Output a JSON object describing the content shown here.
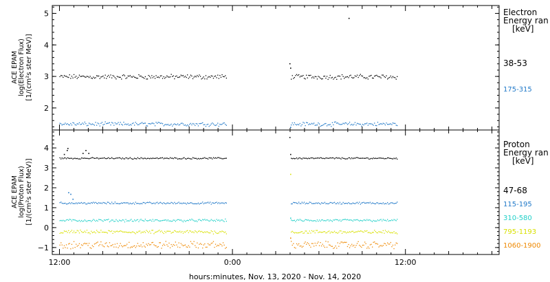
{
  "xaxis": {
    "label": "hours:minutes, Nov. 13, 2020 - Nov. 14, 2020",
    "ticks": [
      {
        "label": "12:00",
        "hour": 12
      },
      {
        "label": "0:00",
        "hour": 24
      },
      {
        "label": "12:00",
        "hour": 36
      }
    ]
  },
  "chart_data": [
    {
      "type": "scatter",
      "name": "electron",
      "ylabel_lines": [
        "ACE EPAM",
        "log(Electron Flux)",
        "[1/(cm²s ster MeV)]"
      ],
      "ylim": [
        1.3,
        5.25
      ],
      "yticks": [
        2,
        3,
        4,
        5
      ],
      "xlim_hours": [
        11.5,
        42.5
      ],
      "legend_title": [
        "Electron",
        "Energy ran",
        "[keV]"
      ],
      "data_gaps_hours": [
        [
          23.6,
          28.0
        ],
        [
          35.4,
          42.5
        ]
      ],
      "series": [
        {
          "name": "38-53",
          "color": "#000000",
          "level": 3.0,
          "spread": 0.06,
          "extra_points": [
            {
              "x": 27.95,
              "y": 3.42
            },
            {
              "x": 28.0,
              "y": 3.28
            },
            {
              "x": 32.05,
              "y": 4.86
            }
          ]
        },
        {
          "name": "175-315",
          "color": "#1f78c8",
          "level": 1.5,
          "spread": 0.05,
          "extra_points": [
            {
              "x": 28.0,
              "y": 1.4
            }
          ]
        }
      ]
    },
    {
      "type": "scatter",
      "name": "proton",
      "ylabel_lines": [
        "ACE EPAM",
        "log(Proton Flux)",
        "[1/(cm²s ster MeV)]"
      ],
      "ylim": [
        -1.35,
        4.9
      ],
      "yticks": [
        -1,
        0,
        1,
        2,
        3,
        4
      ],
      "xlim_hours": [
        11.5,
        42.5
      ],
      "legend_title": [
        "Proton",
        "Energy ran",
        "[keV]"
      ],
      "data_gaps_hours": [
        [
          23.6,
          28.0
        ],
        [
          35.4,
          42.5
        ]
      ],
      "series": [
        {
          "name": "47-68",
          "color": "#000000",
          "level": 3.5,
          "spread": 0.03,
          "extra_points": [
            {
              "x": 12.3,
              "y": 3.7
            },
            {
              "x": 12.5,
              "y": 3.9
            },
            {
              "x": 12.55,
              "y": 4.0
            },
            {
              "x": 13.6,
              "y": 3.75
            },
            {
              "x": 13.8,
              "y": 3.9
            },
            {
              "x": 14.0,
              "y": 3.75
            },
            {
              "x": 27.95,
              "y": 4.55
            },
            {
              "x": 28.0,
              "y": 3.7
            }
          ]
        },
        {
          "name": "115-195",
          "color": "#1f78c8",
          "level": 1.25,
          "spread": 0.04,
          "extra_points": [
            {
              "x": 12.6,
              "y": 1.78
            },
            {
              "x": 12.75,
              "y": 1.7
            },
            {
              "x": 12.9,
              "y": 1.45
            }
          ]
        },
        {
          "name": "310-580",
          "color": "#20d0c8",
          "level": 0.38,
          "spread": 0.05,
          "extra_points": [
            {
              "x": 28.0,
              "y": 0.5
            }
          ]
        },
        {
          "name": "795-1193",
          "color": "#d8e000",
          "level": -0.2,
          "spread": 0.07,
          "extra_points": [
            {
              "x": 28.0,
              "y": 2.7
            }
          ]
        },
        {
          "name": "1060-1900",
          "color": "#ee8800",
          "level": -0.85,
          "spread": 0.14,
          "extra_points": [
            {
              "x": 28.0,
              "y": -0.5
            }
          ]
        }
      ]
    }
  ]
}
